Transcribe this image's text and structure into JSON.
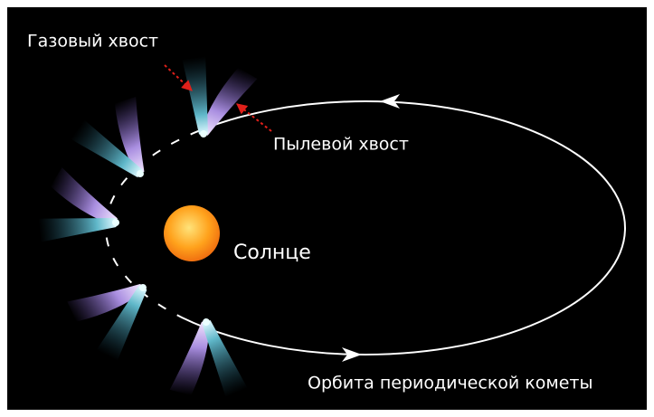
{
  "labels": {
    "gas_tail": "Газовый хвост",
    "dust_tail": "Пылевой хвост",
    "sun": "Солнце",
    "orbit": "Орбита периодической кометы"
  }
}
